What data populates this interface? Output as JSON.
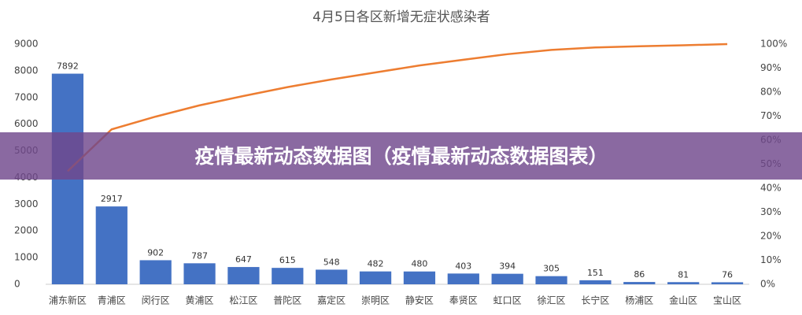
{
  "chart_data": {
    "type": "pareto",
    "title": "4月5日各区新增无症状感染者",
    "banner": "疫情最新动态数据图（疫情最新动态数据图表）",
    "categories": [
      "浦东新区",
      "青浦区",
      "闵行区",
      "黄浦区",
      "松江区",
      "普陀区",
      "嘉定区",
      "崇明区",
      "静安区",
      "奉贤区",
      "虹口区",
      "徐汇区",
      "长宁区",
      "杨浦区",
      "金山区",
      "宝山区"
    ],
    "series": [
      {
        "color": "#4472c4",
        "values": [
          7892,
          2917,
          902,
          787,
          647,
          615,
          548,
          482,
          480,
          403,
          394,
          305,
          151,
          86,
          81,
          76
        ]
      },
      {
        "color": "#ed7d31",
        "axis": "y2",
        "values": [
          47.1,
          64.5,
          69.8,
          74.5,
          78.4,
          82.1,
          85.3,
          88.2,
          91.1,
          93.5,
          95.8,
          97.6,
          98.6,
          99.1,
          99.5,
          100
        ]
      }
    ],
    "ylim": [
      0,
      9000
    ],
    "yticks": [
      0,
      1000,
      2000,
      3000,
      4000,
      5000,
      6000,
      7000,
      8000,
      9000
    ],
    "y2lim": [
      0,
      100
    ],
    "y2ticks": [
      {
        "value": 0,
        "label": "0%"
      },
      {
        "value": 10,
        "label": "10%"
      },
      {
        "value": 20,
        "label": "20%"
      },
      {
        "value": 30,
        "label": "30%"
      },
      {
        "value": 40,
        "label": "40%"
      },
      {
        "value": 50,
        "label": "50%"
      },
      {
        "value": 60,
        "label": "60%"
      },
      {
        "value": 70,
        "label": "70%"
      },
      {
        "value": 80,
        "label": "80%"
      },
      {
        "value": 90,
        "label": "90%"
      },
      {
        "value": 100,
        "label": "100%"
      }
    ],
    "grid": false
  }
}
